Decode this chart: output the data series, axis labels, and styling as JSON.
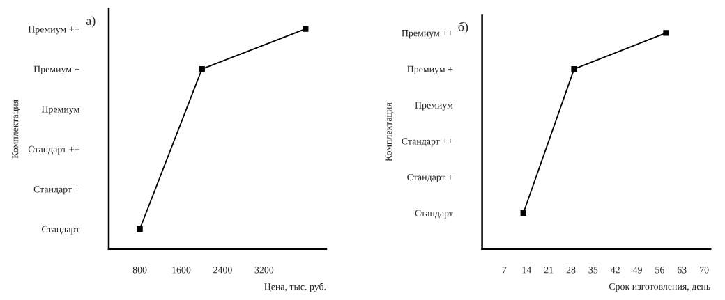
{
  "chart_data": [
    {
      "type": "line",
      "title": "а)",
      "xlabel": "Цена, тыс. руб.",
      "ylabel": "Комплектация",
      "orientation": "horizontal",
      "categories": [
        "Премиум ++",
        null,
        "Премиум +",
        null,
        "Премиум",
        null,
        "Стандарт ++",
        null,
        "Стандарт +",
        null,
        "Стандарт"
      ],
      "series": [
        {
          "color": "#000000",
          "values": [
            4000,
            null,
            2000,
            null,
            null,
            null,
            null,
            null,
            null,
            null,
            800
          ]
        }
      ],
      "marker": "square",
      "line_style": "solid",
      "xlim": [
        200,
        4400
      ],
      "xticks": [
        800,
        1600,
        2400,
        3200
      ]
    },
    {
      "type": "line",
      "title": "б)",
      "xlabel": "Срок изготовления, день",
      "ylabel": "Комплектация",
      "orientation": "horizontal",
      "categories": [
        "Премиум ++",
        null,
        "Премиум +",
        null,
        "Премиум",
        null,
        "Стандарт ++",
        null,
        "Стандарт +",
        null,
        "Стандарт",
        null
      ],
      "series": [
        {
          "color": "#000000",
          "values": [
            58,
            null,
            29,
            null,
            null,
            null,
            null,
            null,
            null,
            null,
            13,
            null
          ]
        }
      ],
      "marker": "square",
      "line_style": "solid",
      "xlim": [
        0,
        72
      ],
      "xticks": [
        7,
        14,
        21,
        28,
        35,
        42,
        49,
        56,
        63,
        70
      ]
    }
  ]
}
